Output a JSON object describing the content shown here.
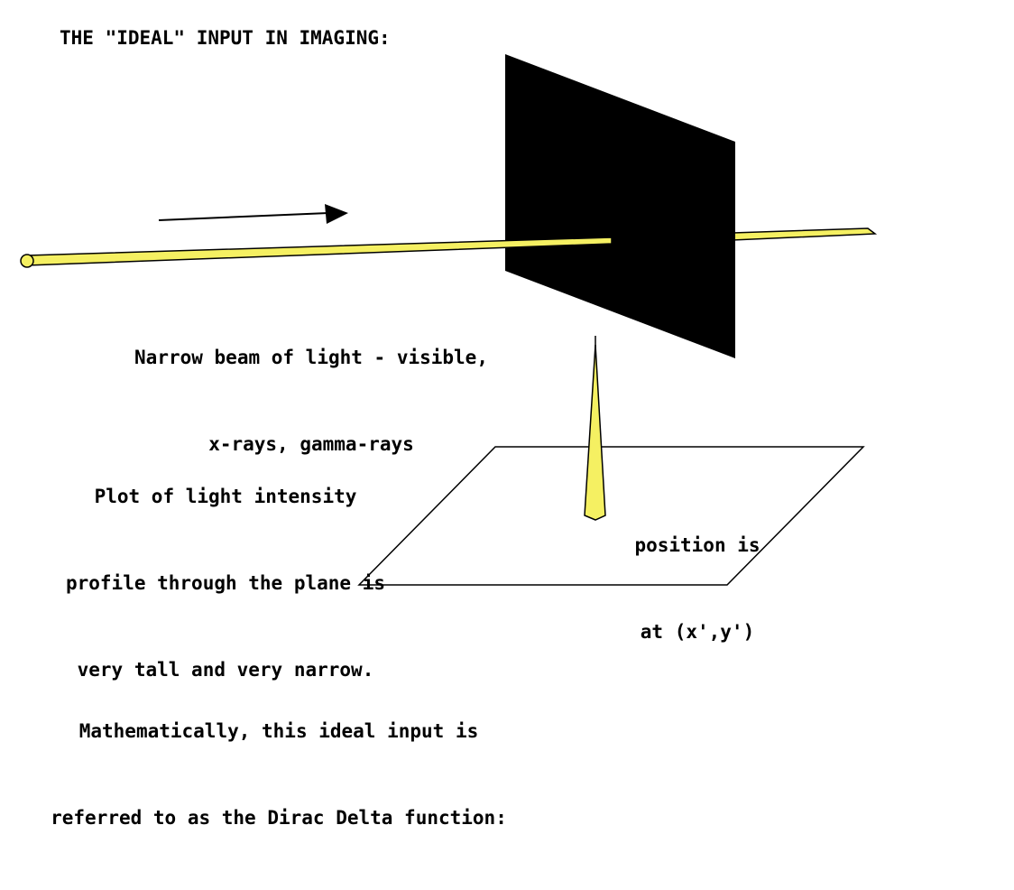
{
  "title": "THE \"IDEAL\" INPUT IN IMAGING:",
  "beam_caption": {
    "line1": "Narrow beam of light - visible,",
    "line2": "x-rays, gamma-rays"
  },
  "plot_caption": {
    "line1": "Plot of light intensity",
    "line2": "profile through the plane is",
    "line3": "very tall and very narrow."
  },
  "position_label": {
    "line1": "position is",
    "line2": "at (x',y')"
  },
  "math_caption": {
    "line1": "Mathematically, this ideal input is",
    "line2": "referred to as the Dirac Delta function:"
  },
  "colors": {
    "beam": "#f5f062",
    "screen": "#000000",
    "outline": "#000000",
    "background": "#ffffff"
  }
}
